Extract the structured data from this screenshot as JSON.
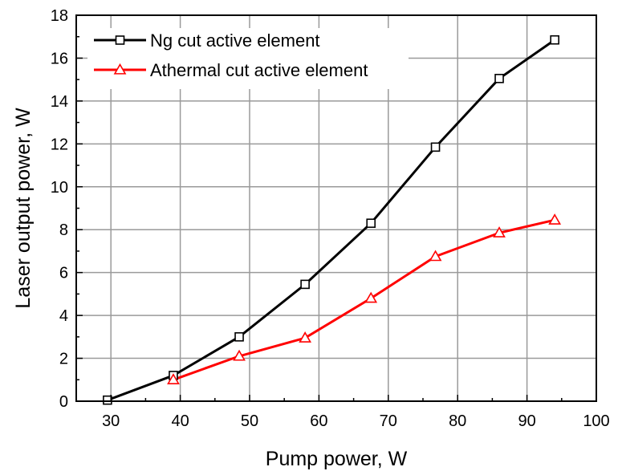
{
  "chart_data": {
    "type": "line",
    "title": "",
    "xlabel": "Pump power, W",
    "ylabel": "Laser output power, W",
    "xlim": [
      25,
      100
    ],
    "ylim": [
      0,
      18
    ],
    "xticks": [
      30,
      40,
      50,
      60,
      70,
      80,
      90,
      100
    ],
    "yticks": [
      0,
      2,
      4,
      6,
      8,
      10,
      12,
      14,
      16,
      18
    ],
    "grid": true,
    "legend_position": "top-left",
    "series": [
      {
        "name": "Ng cut active element",
        "color": "#000000",
        "marker": "open-square",
        "x": [
          29.5,
          39.0,
          48.5,
          58.0,
          67.5,
          76.8,
          86.0,
          94.0
        ],
        "y": [
          0.05,
          1.2,
          3.0,
          5.45,
          8.3,
          11.85,
          15.05,
          16.85
        ]
      },
      {
        "name": "Athermal cut active element",
        "color": "#ff0000",
        "marker": "open-triangle",
        "x": [
          39.0,
          48.5,
          58.0,
          67.5,
          76.8,
          86.0,
          94.0
        ],
        "y": [
          1.0,
          2.1,
          2.95,
          4.8,
          6.75,
          7.85,
          8.45
        ]
      }
    ]
  }
}
